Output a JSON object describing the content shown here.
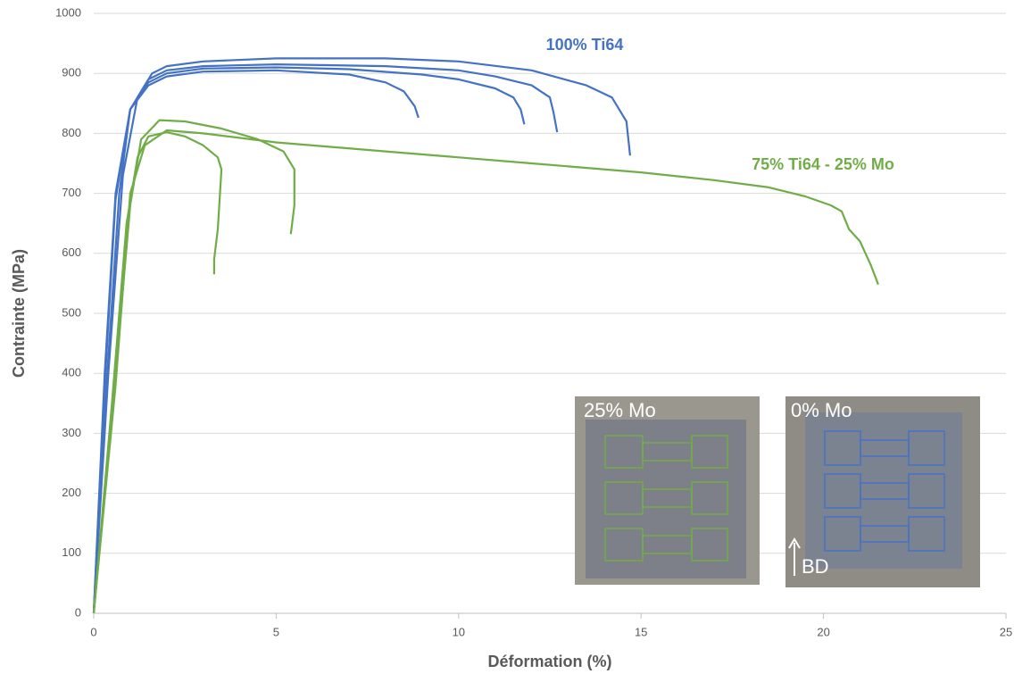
{
  "chart_data": {
    "type": "line",
    "x_label": "Déformation (%)",
    "y_label": "Contrainte (MPa)",
    "annotations": [
      "100% Ti64",
      "75% Ti64 - 25% Mo"
    ],
    "xlim": [
      0,
      25
    ],
    "xticks": [
      0,
      5,
      10,
      15,
      20,
      25
    ],
    "ylim": [
      0,
      1000
    ],
    "yticks": [
      0,
      100,
      200,
      300,
      400,
      500,
      600,
      700,
      800,
      900,
      1000
    ],
    "grid": true,
    "series": [
      {
        "color": "#4472c4",
        "x": [
          0,
          0.3,
          0.6,
          1,
          1.5,
          2,
          3,
          5,
          7,
          8,
          8.5,
          8.8,
          8.9
        ],
        "values": [
          0,
          400,
          700,
          840,
          880,
          895,
          903,
          905,
          898,
          885,
          870,
          845,
          826
        ]
      },
      {
        "color": "#4472c4",
        "x": [
          0,
          0.3,
          0.6,
          1,
          1.5,
          2,
          3,
          5,
          7,
          9,
          10,
          11,
          11.5,
          11.7,
          11.8
        ],
        "values": [
          0,
          380,
          690,
          840,
          885,
          900,
          908,
          910,
          907,
          898,
          890,
          875,
          860,
          840,
          815
        ]
      },
      {
        "color": "#4472c4",
        "x": [
          0,
          0.35,
          0.7,
          1,
          1.5,
          2,
          3,
          5,
          8,
          10,
          11,
          12,
          12.5,
          12.6,
          12.7
        ],
        "values": [
          0,
          380,
          700,
          840,
          890,
          905,
          912,
          915,
          912,
          905,
          895,
          880,
          860,
          835,
          802
        ]
      },
      {
        "color": "#4472c4",
        "x": [
          0,
          0.4,
          0.8,
          1.2,
          1.6,
          2,
          3,
          5,
          8,
          10,
          12,
          13.5,
          14.2,
          14.6,
          14.7
        ],
        "values": [
          0,
          400,
          730,
          860,
          900,
          912,
          920,
          925,
          925,
          920,
          905,
          880,
          860,
          820,
          763
        ]
      },
      {
        "color": "#70ad47",
        "x": [
          0,
          0.5,
          0.9,
          1.2,
          1.5,
          2,
          2.5,
          3,
          3.4,
          3.5,
          3.4,
          3.3,
          3.3
        ],
        "values": [
          0,
          350,
          650,
          760,
          795,
          802,
          795,
          780,
          760,
          740,
          640,
          590,
          565
        ]
      },
      {
        "color": "#70ad47",
        "x": [
          0,
          0.5,
          1,
          1.3,
          1.8,
          2.5,
          3.5,
          4.5,
          5.2,
          5.5,
          5.5,
          5.4
        ],
        "values": [
          0,
          330,
          680,
          790,
          822,
          820,
          808,
          790,
          770,
          740,
          680,
          632
        ]
      },
      {
        "color": "#70ad47",
        "x": [
          0,
          0.6,
          1,
          1.4,
          2,
          3,
          5,
          8,
          12,
          15,
          17,
          18.5,
          19.5,
          20.2,
          20.5,
          20.7,
          21,
          21.3,
          21.5
        ],
        "values": [
          0,
          380,
          700,
          780,
          805,
          800,
          785,
          770,
          750,
          735,
          722,
          710,
          695,
          680,
          670,
          640,
          620,
          580,
          548
        ]
      }
    ]
  },
  "inset_labels": [
    "25% Mo",
    "0% Mo",
    "BD"
  ]
}
